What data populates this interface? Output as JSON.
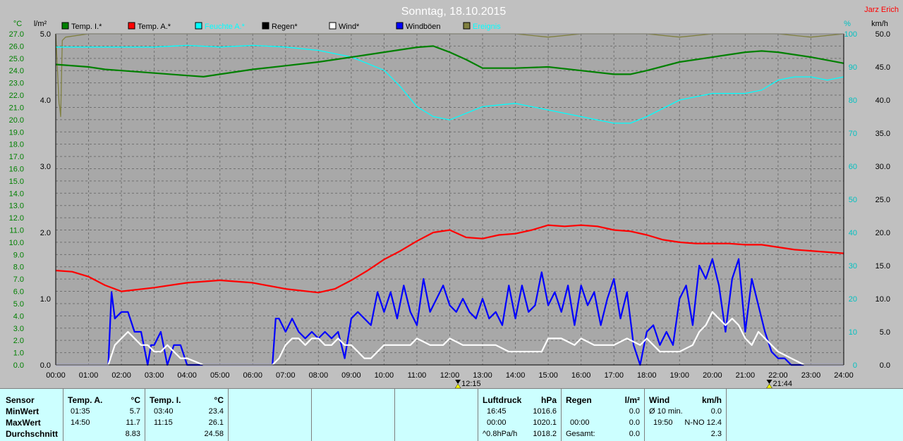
{
  "chart_data": {
    "type": "line",
    "title": "Sonntag, 18.10.2015",
    "author": "Jarz Erich",
    "x_range": [
      "00:00",
      "24:00"
    ],
    "x_ticks": [
      "00:00",
      "01:00",
      "02:00",
      "03:00",
      "04:00",
      "05:00",
      "06:00",
      "07:00",
      "08:00",
      "09:00",
      "10:00",
      "11:00",
      "12:00",
      "13:00",
      "14:00",
      "15:00",
      "16:00",
      "17:00",
      "18:00",
      "19:00",
      "20:00",
      "21:00",
      "22:00",
      "23:00",
      "24:00"
    ],
    "axes": {
      "temp": {
        "unit": "°C",
        "min": 0,
        "max": 27,
        "ticks": [
          "0.0",
          "1.0",
          "2.0",
          "3.0",
          "4.0",
          "5.0",
          "6.0",
          "7.0",
          "8.0",
          "9.0",
          "10.0",
          "11.0",
          "12.0",
          "13.0",
          "14.0",
          "15.0",
          "16.0",
          "17.0",
          "18.0",
          "19.0",
          "20.0",
          "21.0",
          "22.0",
          "23.0",
          "24.0",
          "25.0",
          "26.0",
          "27.0"
        ],
        "color": "#008000"
      },
      "rain": {
        "unit": "l/m²",
        "min": 0,
        "max": 5,
        "ticks": [
          "0.0",
          "1.0",
          "2.0",
          "3.0",
          "4.0",
          "5.0"
        ],
        "color": "#000000"
      },
      "humidity": {
        "unit": "%",
        "min": 0,
        "max": 100,
        "ticks": [
          "0",
          "10",
          "20",
          "30",
          "40",
          "50",
          "60",
          "70",
          "80",
          "90",
          "100"
        ],
        "color": "#00c0c0"
      },
      "wind": {
        "unit": "km/h",
        "min": 0,
        "max": 50,
        "ticks": [
          "0.0",
          "5.0",
          "10.0",
          "15.0",
          "20.0",
          "25.0",
          "30.0",
          "35.0",
          "40.0",
          "45.0",
          "50.0"
        ],
        "color": "#000000"
      }
    },
    "legend": [
      {
        "name": "Temp. I.*",
        "color": "#008000"
      },
      {
        "name": "Temp. A.*",
        "color": "#ff0000"
      },
      {
        "name": "Feuchte A.*",
        "color": "#00ffff"
      },
      {
        "name": "Regen*",
        "color": "#000000"
      },
      {
        "name": "Wind*",
        "color": "#ffffff"
      },
      {
        "name": "Windböen",
        "color": "#0000ff"
      },
      {
        "name": "Ereignis",
        "color": "#808040"
      }
    ],
    "markers": [
      {
        "time": "12:15"
      },
      {
        "time": "21:44"
      }
    ],
    "series": [
      {
        "name": "Temp. I.*",
        "axis": "temp",
        "color": "#008000",
        "x": [
          0,
          1,
          1.5,
          2,
          3,
          4,
          4.5,
          5,
          6,
          7,
          8,
          9,
          10,
          11,
          11.5,
          12,
          12.5,
          13,
          14,
          15,
          16,
          17,
          17.5,
          18,
          19,
          20,
          21,
          21.5,
          22,
          23,
          24
        ],
        "y": [
          24.5,
          24.3,
          24.1,
          24.0,
          23.8,
          23.6,
          23.5,
          23.7,
          24.1,
          24.4,
          24.7,
          25.1,
          25.5,
          25.9,
          26.0,
          25.5,
          24.9,
          24.2,
          24.2,
          24.3,
          24.0,
          23.7,
          23.7,
          24.0,
          24.7,
          25.1,
          25.5,
          25.6,
          25.5,
          25.1,
          24.6
        ]
      },
      {
        "name": "Temp. A.*",
        "axis": "temp",
        "color": "#ff0000",
        "x": [
          0,
          0.5,
          1,
          1.5,
          2,
          3,
          4,
          5,
          6,
          7,
          8,
          8.5,
          9,
          9.5,
          10,
          10.5,
          11,
          11.5,
          12,
          12.5,
          13,
          13.5,
          14,
          14.5,
          15,
          15.5,
          16,
          16.5,
          17,
          17.5,
          18,
          18.5,
          19,
          19.5,
          20,
          20.5,
          21,
          21.5,
          22,
          22.5,
          23,
          23.5,
          24
        ],
        "y": [
          7.7,
          7.6,
          7.2,
          6.5,
          6.0,
          6.3,
          6.7,
          6.9,
          6.7,
          6.2,
          5.9,
          6.2,
          6.9,
          7.7,
          8.6,
          9.3,
          10.1,
          10.8,
          11.0,
          10.4,
          10.3,
          10.6,
          10.7,
          11.0,
          11.4,
          11.3,
          11.4,
          11.3,
          11.0,
          10.9,
          10.6,
          10.2,
          10.0,
          9.9,
          9.9,
          9.9,
          9.8,
          9.8,
          9.6,
          9.4,
          9.3,
          9.2,
          9.1
        ]
      },
      {
        "name": "Feuchte A.*",
        "axis": "humidity",
        "color": "#00ffff",
        "x": [
          0,
          1,
          2,
          3,
          4,
          5,
          6,
          7,
          8,
          9,
          10,
          10.5,
          11,
          11.5,
          12,
          12.5,
          13,
          14,
          15,
          16,
          16.5,
          17,
          17.5,
          18,
          19,
          20,
          21,
          21.5,
          22,
          22.5,
          23,
          23.5,
          24
        ],
        "y": [
          96,
          96,
          96,
          96,
          96.5,
          96,
          96.5,
          96,
          95,
          93,
          89,
          84,
          78,
          75,
          74,
          76,
          78,
          79,
          77,
          75,
          74,
          73,
          73,
          75,
          80,
          82,
          82,
          83,
          86,
          87,
          87,
          86,
          87
        ]
      },
      {
        "name": "Windböen",
        "axis": "wind",
        "color": "#0000ff",
        "x": [
          0,
          1,
          1.6,
          1.7,
          1.8,
          2.0,
          2.2,
          2.4,
          2.6,
          2.8,
          2.9,
          3.0,
          3.2,
          3.4,
          3.6,
          3.8,
          4.0,
          4.2,
          4.4,
          4.6,
          4.8,
          5.0,
          6.0,
          6.6,
          6.7,
          6.8,
          7.0,
          7.2,
          7.4,
          7.6,
          7.8,
          8.0,
          8.2,
          8.4,
          8.6,
          8.8,
          9.0,
          9.2,
          9.4,
          9.6,
          9.8,
          10.0,
          10.2,
          10.4,
          10.6,
          10.8,
          11.0,
          11.2,
          11.4,
          11.6,
          11.8,
          12.0,
          12.2,
          12.4,
          12.6,
          12.8,
          13.0,
          13.2,
          13.4,
          13.6,
          13.8,
          14.0,
          14.2,
          14.4,
          14.6,
          14.8,
          15.0,
          15.2,
          15.4,
          15.6,
          15.8,
          16.0,
          16.2,
          16.4,
          16.6,
          16.8,
          17.0,
          17.2,
          17.4,
          17.6,
          17.8,
          18.0,
          18.2,
          18.4,
          18.6,
          18.8,
          19.0,
          19.2,
          19.4,
          19.6,
          19.8,
          20.0,
          20.2,
          20.4,
          20.6,
          20.8,
          21.0,
          21.2,
          21.4,
          21.6,
          21.8,
          22.0,
          22.2,
          22.4,
          22.6,
          22.8,
          23.0,
          24.0
        ],
        "y": [
          0,
          0,
          0,
          11,
          7,
          8,
          8,
          5,
          5,
          0,
          3,
          3,
          5,
          0,
          3,
          3,
          0,
          0,
          0,
          0,
          0,
          0,
          0,
          0,
          7,
          7,
          5,
          7,
          5,
          4,
          5,
          4,
          5,
          4,
          5,
          1,
          7,
          8,
          7,
          6,
          11,
          8,
          11,
          7,
          12,
          8,
          6,
          13,
          8,
          10,
          12,
          9,
          8,
          10,
          8,
          7,
          10,
          7,
          8,
          6,
          12,
          7,
          12,
          8,
          9,
          14,
          9,
          11,
          8,
          12,
          6,
          12,
          9,
          11,
          6,
          10,
          13,
          7,
          11,
          3,
          0,
          5,
          6,
          3,
          5,
          3,
          10,
          12,
          6,
          15,
          13,
          16,
          12,
          5,
          13,
          16,
          5,
          13,
          9,
          5,
          2,
          1,
          1,
          0,
          0,
          0,
          0,
          0
        ]
      },
      {
        "name": "Wind*",
        "axis": "wind",
        "color": "#ffffff",
        "x": [
          0,
          1,
          1.6,
          1.8,
          2.0,
          2.2,
          2.4,
          2.6,
          2.8,
          3.0,
          3.2,
          3.4,
          3.6,
          3.8,
          4.0,
          4.5,
          5.0,
          6.0,
          6.6,
          6.8,
          7.0,
          7.2,
          7.4,
          7.6,
          7.8,
          8.0,
          8.2,
          8.4,
          8.6,
          8.8,
          9.0,
          9.2,
          9.4,
          9.6,
          9.8,
          10.0,
          10.4,
          10.8,
          11.0,
          11.4,
          11.8,
          12.0,
          12.4,
          12.8,
          13.0,
          13.4,
          13.8,
          14.0,
          14.4,
          14.8,
          15.0,
          15.4,
          15.8,
          16.0,
          16.4,
          16.8,
          17.0,
          17.4,
          17.8,
          18.0,
          18.4,
          18.8,
          19.0,
          19.4,
          19.6,
          19.8,
          20.0,
          20.2,
          20.4,
          20.6,
          20.8,
          21.0,
          21.2,
          21.4,
          21.6,
          21.8,
          22.0,
          22.4,
          22.8,
          23.0,
          24.0
        ],
        "y": [
          0,
          0,
          0,
          3,
          4,
          5,
          4,
          3,
          3,
          2,
          2,
          3,
          2,
          1,
          1,
          0,
          0,
          0,
          0,
          1,
          3,
          4,
          4,
          3,
          4,
          4,
          3,
          3,
          4,
          3,
          3,
          2,
          1,
          1,
          2,
          3,
          3,
          3,
          4,
          3,
          3,
          4,
          3,
          3,
          3,
          3,
          2,
          2,
          2,
          2,
          4,
          4,
          3,
          4,
          3,
          3,
          3,
          4,
          3,
          4,
          2,
          2,
          2,
          3,
          5,
          6,
          8,
          7,
          6,
          7,
          6,
          4,
          3,
          5,
          4,
          3,
          2,
          1,
          0,
          0,
          0
        ]
      },
      {
        "name": "Ereignis",
        "axis": "humidity",
        "color": "#808040",
        "x": [
          0,
          0.1,
          0.12,
          0.15,
          0.2,
          0.3,
          1,
          2,
          3,
          4,
          5,
          6,
          7,
          8,
          9,
          10,
          11,
          12,
          13,
          14,
          15,
          16,
          17,
          18,
          19,
          20,
          21,
          22,
          23,
          24
        ],
        "y": [
          100,
          79,
          78,
          75,
          98,
          99,
          100,
          100,
          100,
          100,
          100,
          100,
          100,
          100,
          100,
          100,
          100,
          100,
          100,
          100,
          99,
          100,
          100,
          100,
          99,
          100,
          100,
          100,
          99,
          100
        ]
      }
    ]
  },
  "panel": {
    "sensor": {
      "header": "Sensor",
      "rows": [
        "MinWert",
        "MaxWert",
        "Durchschnitt"
      ]
    },
    "temp_a": {
      "header": "Temp. A.",
      "unit": "°C",
      "min_time": "01:35",
      "min_val": "5.7",
      "max_time": "14:50",
      "max_val": "11.7",
      "avg": "8.83"
    },
    "temp_i": {
      "header": "Temp. I.",
      "unit": "°C",
      "min_time": "03:40",
      "min_val": "23.4",
      "max_time": "11:15",
      "max_val": "26.1",
      "avg": "24.58"
    },
    "luftdruck": {
      "header": "Luftdruck",
      "unit": "hPa",
      "min_time": "16:45",
      "min_val": "1016.6",
      "max_time": "00:00",
      "max_val": "1020.1",
      "trend_label": "^0.8hPa/h",
      "trend_val": "1018.2"
    },
    "regen": {
      "header": "Regen",
      "unit": "l/m²",
      "r1_time": "",
      "r1_val": "0.0",
      "r2_time": "00:00",
      "r2_val": "0.0",
      "r3_label": "Gesamt:",
      "r3_val": "0.0"
    },
    "wind": {
      "header": "Wind",
      "unit": "km/h",
      "r1_label": "Ø 10 min.",
      "r1_val": "0.0",
      "r2_time": "19:50",
      "r2_val": "N-NO 12.4",
      "r3_val": "2.3"
    }
  }
}
